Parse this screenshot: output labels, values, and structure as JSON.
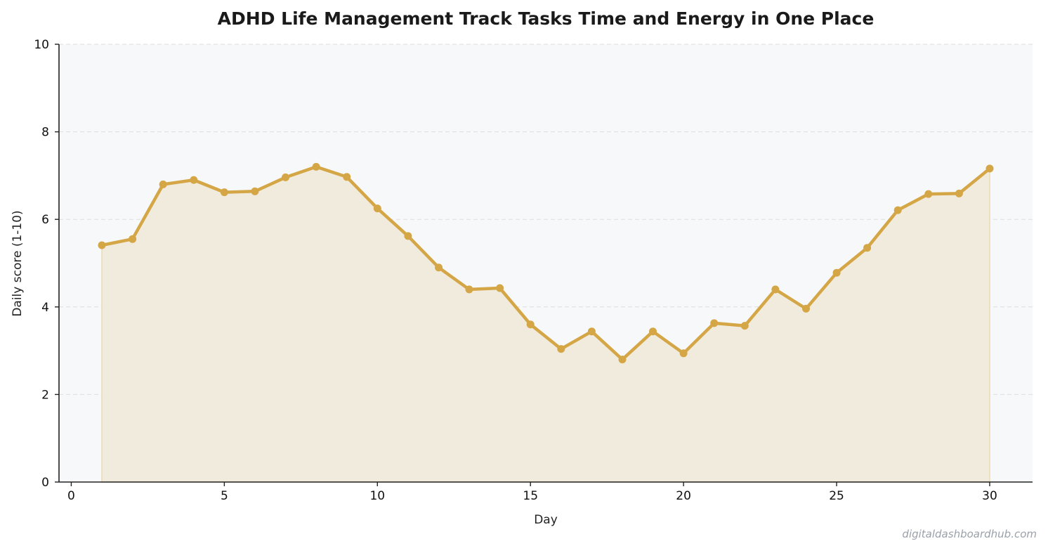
{
  "chart_data": {
    "type": "area",
    "title": "ADHD Life Management  Track Tasks  Time  and Energy in One Place",
    "xlabel": "Day",
    "ylabel": "Daily score (1-10)",
    "xlim": [
      -0.4,
      31.4
    ],
    "ylim": [
      0,
      10
    ],
    "xticks": [
      0,
      5,
      10,
      15,
      20,
      25,
      30
    ],
    "yticks": [
      0,
      2,
      4,
      6,
      8,
      10
    ],
    "grid": "horizontal dashed",
    "legend": "none",
    "series": [
      {
        "x": [
          1,
          2,
          3,
          4,
          5,
          6,
          7,
          8,
          9,
          10,
          11,
          12,
          13,
          14,
          15,
          16,
          17,
          18,
          19,
          20,
          21,
          22,
          23,
          24,
          25,
          26,
          27,
          28,
          29,
          30
        ],
        "values": [
          5.41,
          5.55,
          6.8,
          6.9,
          6.62,
          6.64,
          6.96,
          7.2,
          6.97,
          6.25,
          5.62,
          4.9,
          4.4,
          4.43,
          3.6,
          3.04,
          3.44,
          2.8,
          3.44,
          2.94,
          3.63,
          3.57,
          4.4,
          3.96,
          4.78,
          5.35,
          6.21,
          6.58,
          6.59,
          7.16
        ]
      }
    ],
    "colors": {
      "line": "#d4a646",
      "fill": "#f1ebde",
      "plot_background": "#f7f8fa",
      "grid": "#dedede",
      "axis": "#222222"
    }
  },
  "watermark": "digitaldashboardhub.com"
}
